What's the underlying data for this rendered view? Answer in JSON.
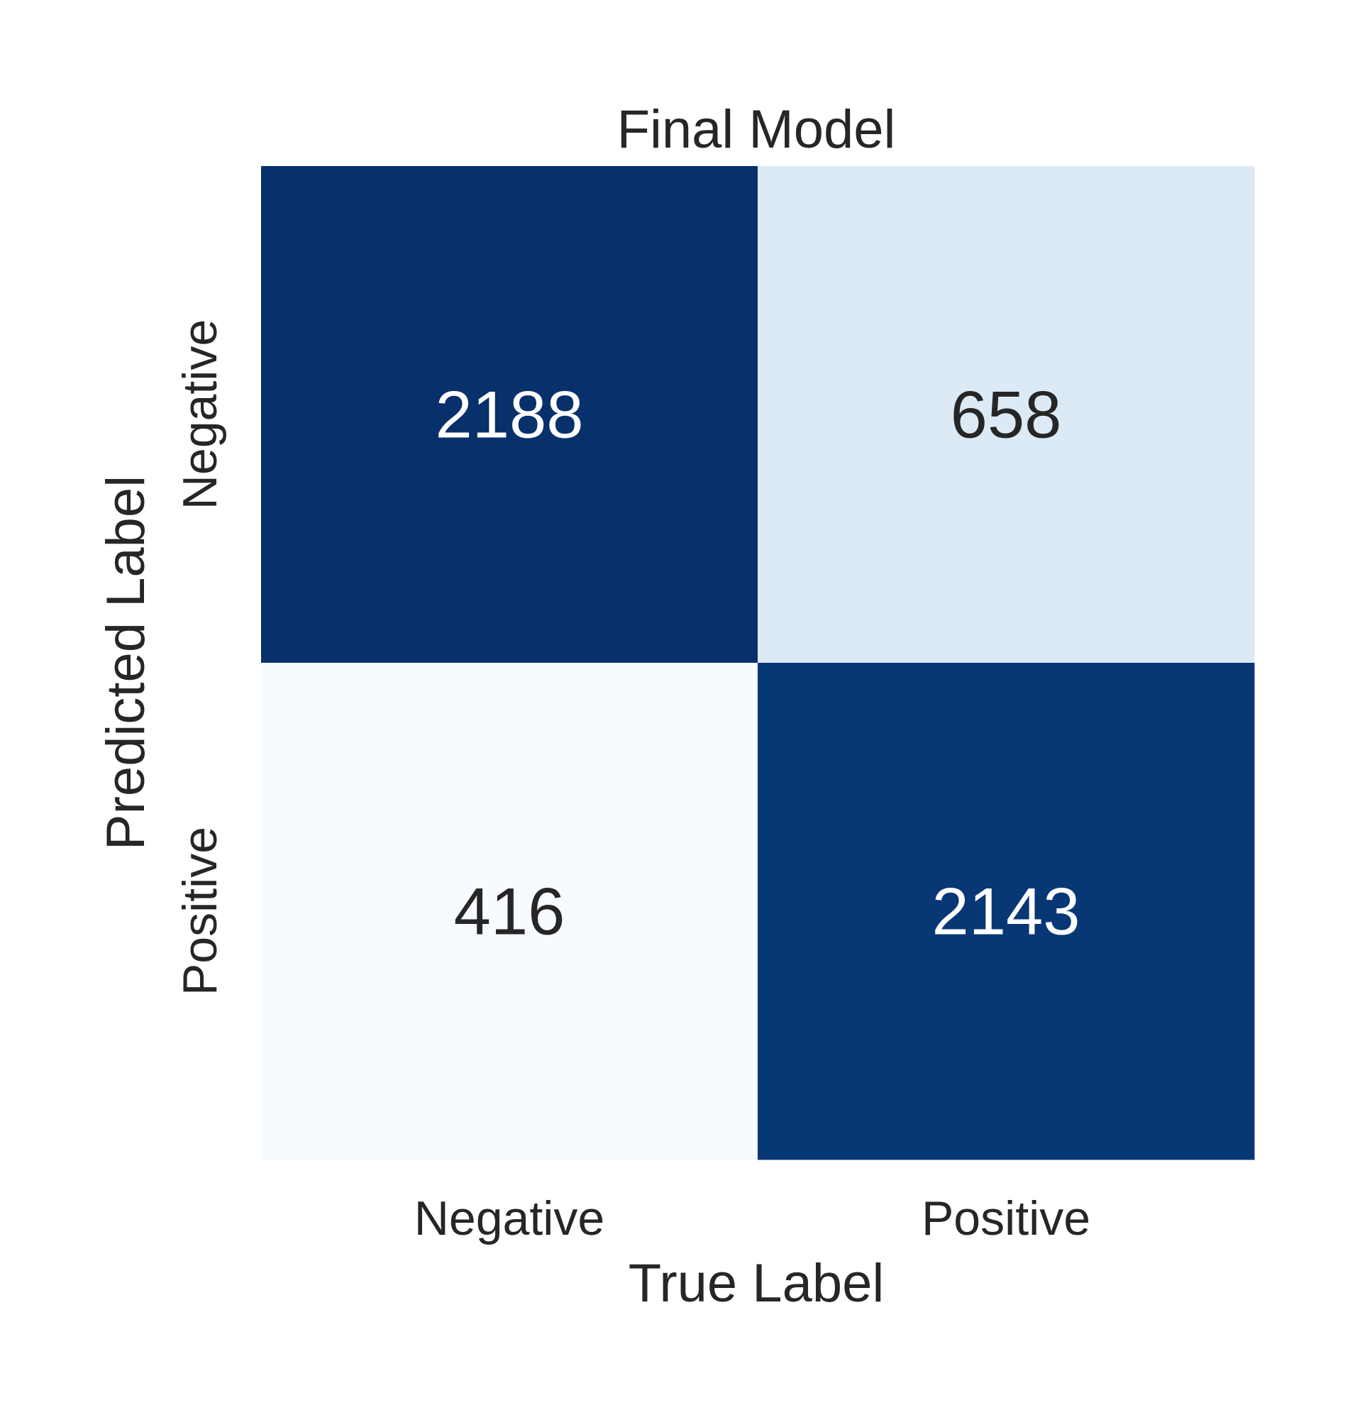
{
  "chart_data": {
    "type": "heatmap",
    "title": "Final Model",
    "xlabel": "True Label",
    "ylabel": "Predicted Label",
    "x_categories": [
      "Negative",
      "Positive"
    ],
    "y_categories": [
      "Negative",
      "Positive"
    ],
    "values": [
      [
        2188,
        658
      ],
      [
        416,
        2143
      ]
    ],
    "colormap": "Blues",
    "colorbar": false,
    "grid": false,
    "colors": {
      "high": "#08306b",
      "mid": "#dbe9f6",
      "low": "#f7fbff",
      "text_dark": "#262626",
      "text_light": "#ffffff"
    }
  }
}
